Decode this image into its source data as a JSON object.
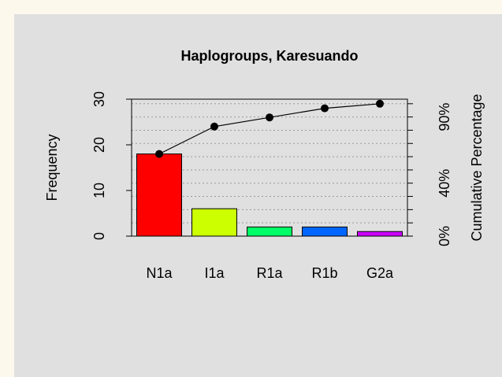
{
  "chart_data": {
    "type": "pareto",
    "title": "Haplogroups, Karesuando",
    "y_label": "Frequency",
    "y2_label": "Cumulative Percentage",
    "categories": [
      "N1a",
      "I1a",
      "R1a",
      "R1b",
      "G2a"
    ],
    "series": [
      {
        "name": "Frequency",
        "colors": [
          "#FF0000",
          "#CCFF00",
          "#00FF66",
          "#0066FF",
          "#CC00FF"
        ],
        "values": [
          18,
          6,
          2,
          2,
          1
        ]
      },
      {
        "name": "Cumulative Percentage",
        "axis": "y2",
        "color": "#000000",
        "values": [
          62.07,
          82.76,
          89.66,
          96.55,
          100
        ]
      }
    ],
    "ylim": [
      0,
      30
    ],
    "yticks": [
      0,
      10,
      20,
      30
    ],
    "y2lim": [
      0,
      103.45
    ],
    "y2ticks": [
      {
        "value": 0,
        "label": "0%"
      },
      {
        "value": 40,
        "label": "40%"
      },
      {
        "value": 90,
        "label": "90%"
      }
    ],
    "y2minor": [
      10,
      20,
      30,
      50,
      60,
      70,
      80,
      100
    ],
    "grid": true
  }
}
